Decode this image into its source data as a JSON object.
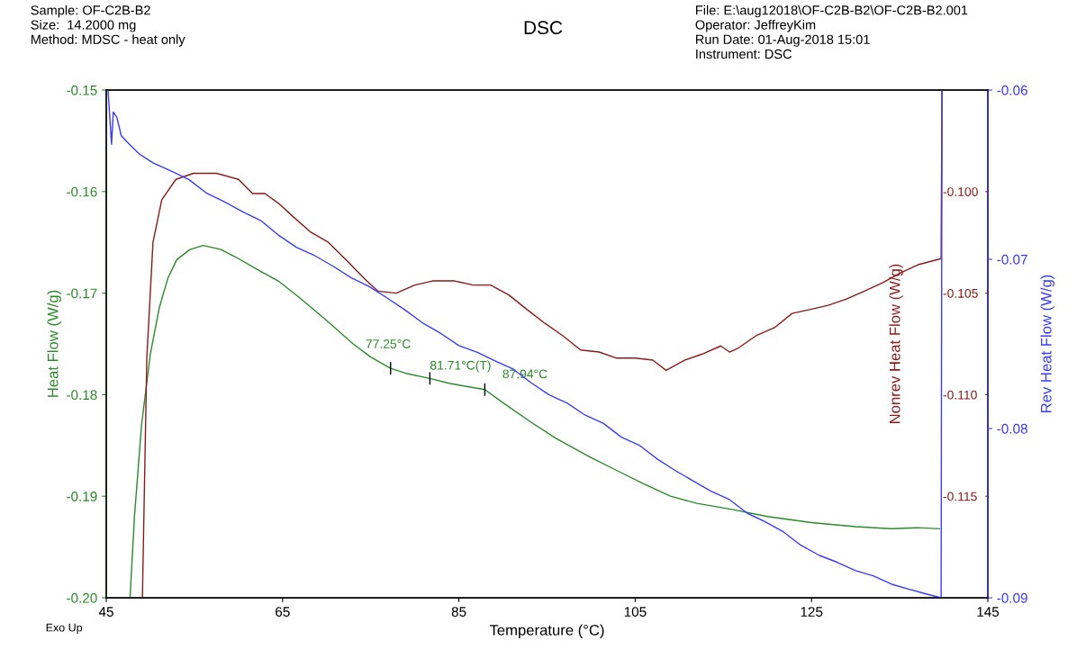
{
  "chart_data": {
    "type": "line",
    "title": "DSC",
    "xlabel": "Temperature (°C)",
    "ylabel": "Heat Flow (W/g)",
    "y2label": "Nonrev Heat Flow (W/g)",
    "y3label": "Rev Heat Flow (W/g)",
    "xlim": [
      45,
      145
    ],
    "xticks": [
      45,
      65,
      85,
      105,
      125,
      145
    ],
    "ylim": [
      -0.2,
      -0.15
    ],
    "yticks": [
      -0.15,
      -0.16,
      -0.17,
      -0.18,
      -0.19,
      {
        "value": -0.2,
        "label": "-0.20"
      }
    ],
    "y2lim": [
      -0.12,
      -0.095
    ],
    "y2ticks": [
      {
        "value": -0.1,
        "label": "-0.100"
      },
      -0.105,
      {
        "value": -0.11,
        "label": "-0.110"
      },
      -0.115
    ],
    "y3lim": [
      -0.09,
      -0.06
    ],
    "y3ticks": [
      -0.06,
      -0.07,
      -0.08,
      -0.09
    ],
    "grid": false,
    "legend": false,
    "line_style": "solid",
    "marker": "none",
    "series": [
      {
        "color": "#2a8a2a",
        "axis": "y",
        "x": [
          47.7,
          48.2,
          49.0,
          50.0,
          51.0,
          52.0,
          53.0,
          54.5,
          56.0,
          58.0,
          60.0,
          62.0,
          64.5,
          67,
          70,
          73,
          75,
          77.25,
          79,
          81.71,
          84,
          87.94,
          90,
          93,
          96,
          100,
          103,
          106,
          109,
          112,
          116,
          120,
          125,
          130,
          134,
          137,
          139.5
        ],
        "values": [
          -0.2,
          -0.192,
          -0.183,
          -0.176,
          -0.1715,
          -0.1685,
          -0.1667,
          -0.1657,
          -0.1653,
          -0.1657,
          -0.1666,
          -0.1676,
          -0.1688,
          -0.1705,
          -0.1727,
          -0.175,
          -0.1763,
          -0.1774,
          -0.1779,
          -0.1784,
          -0.1789,
          -0.1795,
          -0.1808,
          -0.1826,
          -0.1843,
          -0.1862,
          -0.1875,
          -0.1888,
          -0.19,
          -0.1907,
          -0.1913,
          -0.192,
          -0.1926,
          -0.193,
          -0.1932,
          -0.1931,
          -0.1932
        ]
      },
      {
        "color": "#8b1a1a",
        "axis": "y2",
        "x": [
          49.1,
          49.6,
          50.3,
          51.3,
          52.9,
          54.9,
          57.5,
          60.0,
          61.6,
          63.0,
          64.6,
          66.1,
          68.2,
          70.2,
          72.3,
          74.3,
          75.8,
          77.9,
          80.0,
          82.0,
          84.5,
          86.6,
          88.6,
          90.7,
          92.7,
          94.8,
          96.8,
          98.8,
          100.9,
          102.9,
          105.0,
          107.0,
          108.5,
          110.6,
          112.6,
          114.7,
          115.7,
          116.7,
          118.7,
          120.8,
          122.8,
          124.9,
          126.9,
          128.9,
          131.0,
          133.0,
          135.1,
          137.1,
          139.7,
          139.8
        ],
        "values": [
          -0.12,
          -0.1082,
          -0.1025,
          -0.1004,
          -0.0994,
          -0.0991,
          -0.0991,
          -0.0994,
          -0.1001,
          -0.1001,
          -0.1006,
          -0.1012,
          -0.102,
          -0.1025,
          -0.1034,
          -0.1043,
          -0.1049,
          -0.105,
          -0.1046,
          -0.1044,
          -0.1044,
          -0.1046,
          -0.1046,
          -0.1051,
          -0.1058,
          -0.1065,
          -0.1071,
          -0.1078,
          -0.1079,
          -0.1082,
          -0.1082,
          -0.1083,
          -0.1088,
          -0.1083,
          -0.108,
          -0.1076,
          -0.1079,
          -0.1077,
          -0.1071,
          -0.1067,
          -0.106,
          -0.1058,
          -0.1056,
          -0.1053,
          -0.1049,
          -0.1045,
          -0.104,
          -0.1036,
          -0.1033,
          -0.095
        ]
      },
      {
        "color": "#3a3aff",
        "axis": "y3",
        "x": [
          45.2,
          45.4,
          45.6,
          45.8,
          46.2,
          46.7,
          47.8,
          48.8,
          50.3,
          52.4,
          54.4,
          56.4,
          58.4,
          60.5,
          62.5,
          64.6,
          66.6,
          68.7,
          70.7,
          72.8,
          74.8,
          76.9,
          78.9,
          81.0,
          83.0,
          85.0,
          87.1,
          89.1,
          91.2,
          93.2,
          95.2,
          97.3,
          99.3,
          101.4,
          103.4,
          105.5,
          107.5,
          109.6,
          111.6,
          113.6,
          115.7,
          117.7,
          119.7,
          121.8,
          123.8,
          125.9,
          127.9,
          130.0,
          132.0,
          134.1,
          136.1,
          138.2,
          139.7,
          139.8
        ],
        "values": [
          -0.06,
          -0.0616,
          -0.0632,
          -0.0613,
          -0.0616,
          -0.0627,
          -0.0633,
          -0.0638,
          -0.0643,
          -0.0648,
          -0.0653,
          -0.0661,
          -0.0666,
          -0.0672,
          -0.0677,
          -0.0686,
          -0.0693,
          -0.0698,
          -0.0704,
          -0.0711,
          -0.0716,
          -0.0723,
          -0.073,
          -0.0738,
          -0.0744,
          -0.0751,
          -0.0755,
          -0.076,
          -0.0765,
          -0.0773,
          -0.078,
          -0.0785,
          -0.0792,
          -0.0797,
          -0.0805,
          -0.081,
          -0.0818,
          -0.0825,
          -0.0831,
          -0.0837,
          -0.0842,
          -0.085,
          -0.0855,
          -0.0861,
          -0.0869,
          -0.0875,
          -0.0879,
          -0.0884,
          -0.0887,
          -0.0892,
          -0.0895,
          -0.0898,
          -0.09,
          -0.06
        ]
      }
    ],
    "annotations": [
      "Sample: OF-C2B-B2\nSize:  14.2000 mg\nMethod: MDSC - heat only",
      "File: E:\\aug12018\\OF-C2B-B2\\OF-C2B-B2.001\nOperator: JeffreyKim\nRun Date: 01-Aug-2018 15:01\nInstrument: DSC",
      "Exo Up",
      {
        "text": "77.25°C",
        "x": 77.25,
        "y": -0.1774
      },
      {
        "text": "81.71°C(T)",
        "x": 81.71,
        "y": -0.1784
      },
      {
        "text": "87.94°C",
        "x": 87.94,
        "y": -0.1795
      }
    ]
  }
}
